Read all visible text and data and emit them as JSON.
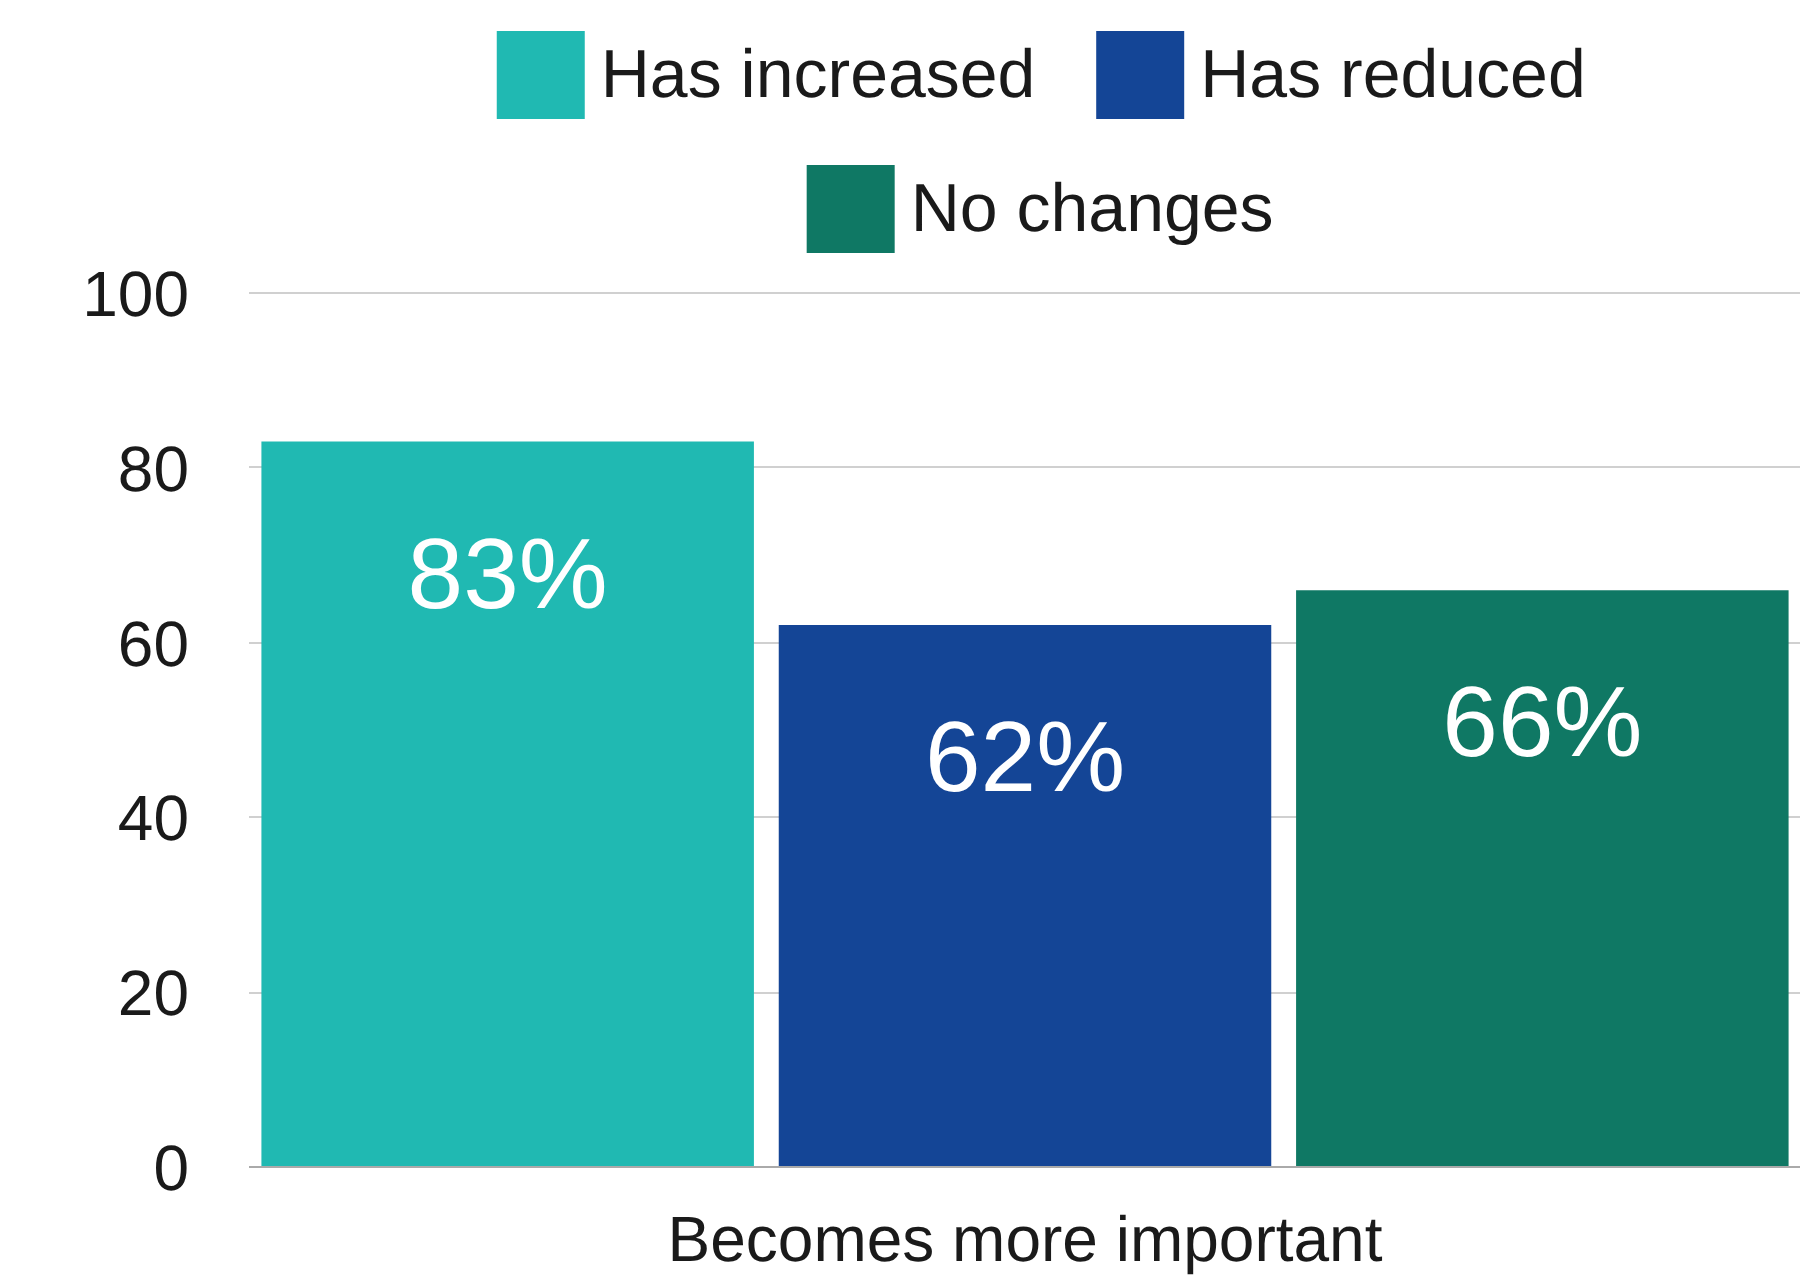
{
  "chart_data": {
    "type": "bar",
    "categories": [
      "Becomes more important"
    ],
    "series": [
      {
        "name": "Has increased",
        "color": "#20b9b2",
        "values": [
          83
        ],
        "value_labels": [
          "83%"
        ]
      },
      {
        "name": "Has reduced",
        "color": "#144596",
        "values": [
          62
        ],
        "value_labels": [
          "62%"
        ]
      },
      {
        "name": "No changes",
        "color": "#0f7864",
        "values": [
          66
        ],
        "value_labels": [
          "66%"
        ]
      }
    ],
    "ylim": [
      0,
      100
    ],
    "yticks": [
      0,
      20,
      40,
      60,
      80,
      100
    ],
    "grid": "y",
    "legend": "top"
  }
}
